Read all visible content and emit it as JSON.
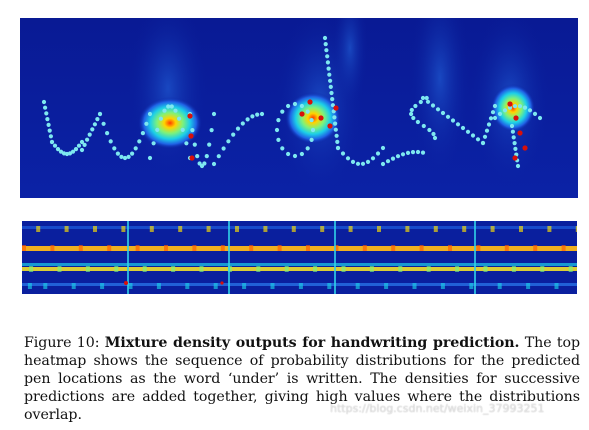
{
  "figure": {
    "label": "Figure 10:",
    "title": "Mixture density outputs for handwriting prediction.",
    "caption_lines": [
      " The top heatmap shows the sequence of probability distributions for the predicted pen locations as the word ‘under’ is written.  The densities for successive predictions are added together, giving high values where the distributions overlap."
    ]
  },
  "watermark": "https://blog.csdn.net/weixin_37993251",
  "colors": {
    "background": "#0a1f9e",
    "dot": "#7ee8f0",
    "hot": "#ffd400",
    "core": "#d8100a"
  }
}
